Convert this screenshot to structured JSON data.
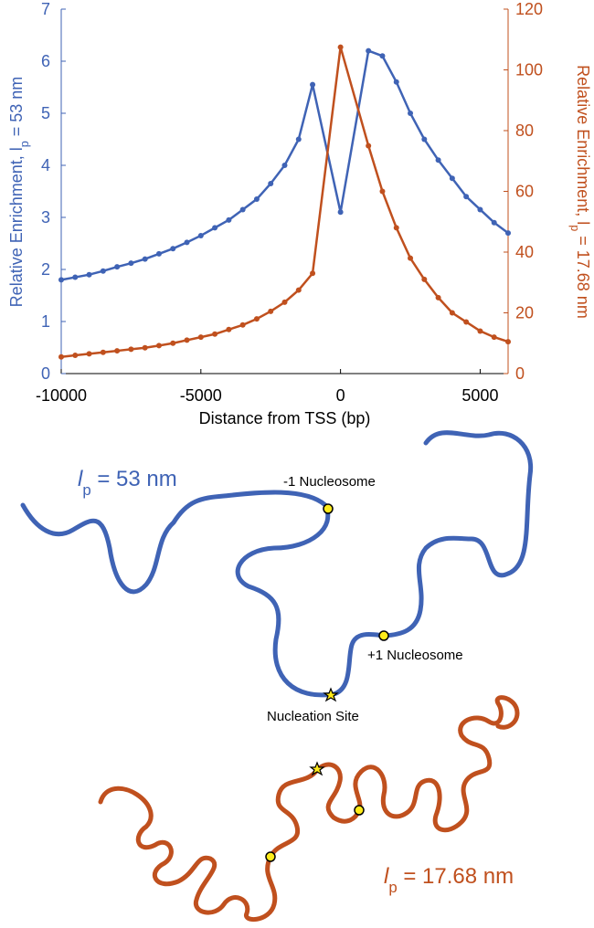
{
  "chart_data": {
    "type": "line",
    "xlabel": "Distance from TSS (bp)",
    "ylabel": [
      "Relative Enrichment, l",
      "p",
      " = 53 nm"
    ],
    "y2label": [
      "Relative Enrichment, l",
      "p",
      " = 17.68 nm"
    ],
    "x": [
      -10000,
      -9500,
      -9000,
      -8500,
      -8000,
      -7500,
      -7000,
      -6500,
      -6000,
      -5500,
      -5000,
      -4500,
      -4000,
      -3500,
      -3000,
      -2500,
      -2000,
      -1500,
      -1000,
      0,
      1000,
      1500,
      2000,
      2500,
      3000,
      3500,
      4000,
      4500,
      5000,
      5500,
      6000
    ],
    "series": [
      {
        "name": "l_p = 53 nm",
        "color": "#3f63b5",
        "values": [
          1.8,
          1.85,
          1.9,
          1.97,
          2.05,
          2.12,
          2.2,
          2.3,
          2.4,
          2.52,
          2.65,
          2.8,
          2.95,
          3.15,
          3.35,
          3.65,
          4.0,
          4.5,
          5.55,
          3.1,
          6.2,
          6.1,
          5.6,
          5.0,
          4.5,
          4.1,
          3.75,
          3.4,
          3.15,
          2.9,
          2.7
        ]
      },
      {
        "name": "l_p = 17.68 nm",
        "color": "#c0501e",
        "axis": "y2",
        "values": [
          5.5,
          6,
          6.5,
          7,
          7.5,
          8,
          8.5,
          9.2,
          10,
          11,
          12,
          13,
          14.5,
          16,
          18,
          20.5,
          23.5,
          27.5,
          33,
          107.5,
          75,
          60,
          48,
          38,
          31,
          25,
          20,
          17,
          14,
          12,
          10.5
        ]
      }
    ],
    "xlim": [
      -10000,
      6000
    ],
    "xticks": [
      -10000,
      -5000,
      0,
      5000
    ],
    "ylim": [
      0,
      7
    ],
    "yticks": [
      0,
      1,
      2,
      3,
      4,
      5,
      6,
      7
    ],
    "y2lim": [
      0,
      120
    ],
    "y2ticks": [
      0,
      20,
      40,
      60,
      80,
      100,
      120
    ]
  },
  "diagram": {
    "top_label": [
      "l",
      "p",
      " = 53 nm"
    ],
    "minus1": "-1 Nucleosome",
    "plus1": "+1 Nucleosome",
    "nucleation": "Nucleation Site",
    "bottom_label": [
      "l",
      "p",
      " = 17.68 nm"
    ]
  }
}
